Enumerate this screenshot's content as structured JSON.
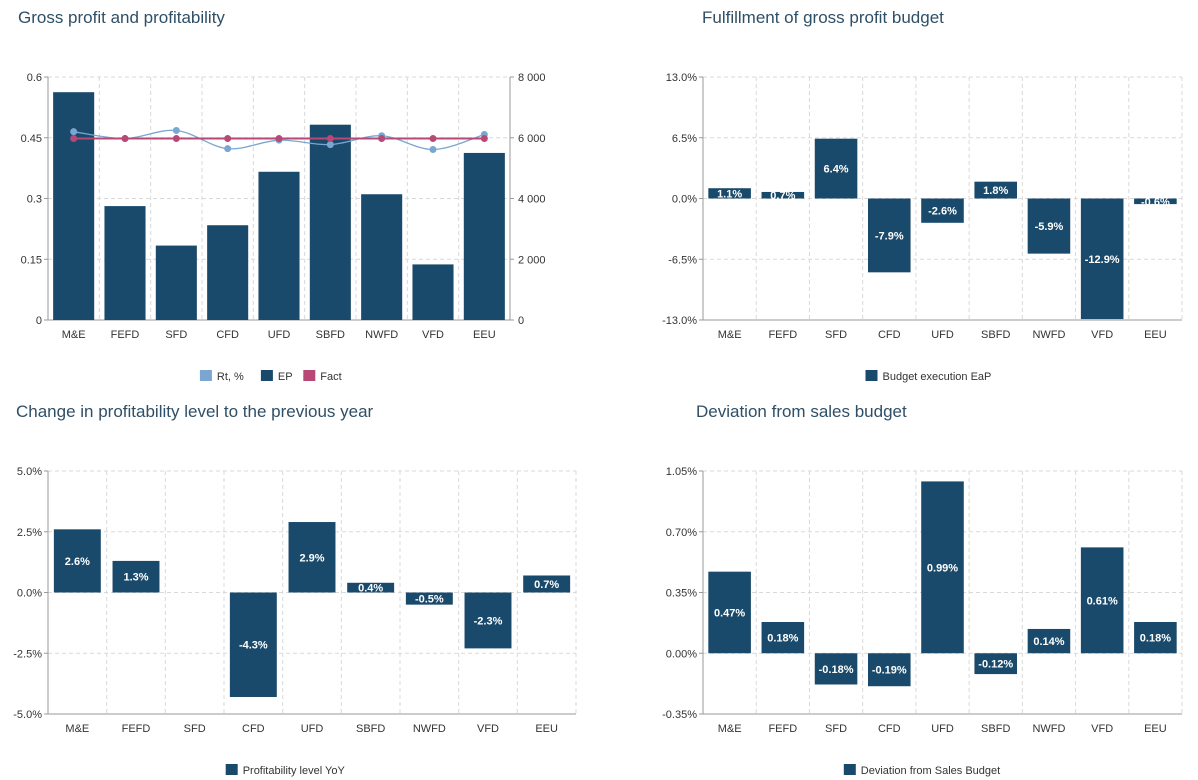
{
  "chart_data": [
    {
      "type": "bar",
      "title": "Gross profit and profitability",
      "categories": [
        "M&E",
        "FEFD",
        "SFD",
        "CFD",
        "UFD",
        "SBFD",
        "NWFD",
        "VFD",
        "EEU"
      ],
      "y_left_ticks": [
        "0",
        "0.15",
        "0.3",
        "0.45",
        "0.6"
      ],
      "y_left_range": [
        0,
        0.6
      ],
      "y_right_ticks": [
        "0",
        "2 000",
        "4 000",
        "6 000",
        "8 000"
      ],
      "y_right_range": [
        0,
        8000
      ],
      "series": [
        {
          "name": "EP",
          "kind": "bar",
          "axis": "right",
          "color": "#1a4a6b",
          "values": [
            7500,
            3750,
            2450,
            3120,
            4880,
            6430,
            4140,
            1830,
            5500
          ]
        },
        {
          "name": "Rt, %",
          "kind": "line",
          "axis": "left",
          "color": "#7aa6cf",
          "values": [
            0.465,
            0.448,
            0.468,
            0.423,
            0.444,
            0.433,
            0.455,
            0.421,
            0.458
          ]
        },
        {
          "name": "Fact",
          "kind": "line",
          "axis": "left",
          "color": "#b84876",
          "values": [
            0.448,
            0.448,
            0.448,
            0.448,
            0.448,
            0.448,
            0.448,
            0.448,
            0.448
          ]
        }
      ],
      "legend": [
        "Rt, %",
        "EP",
        "Fact"
      ],
      "grid": true,
      "legend_position": "bottom"
    },
    {
      "type": "bar",
      "title": "Fulfillment of gross profit budget",
      "categories": [
        "M&E",
        "FEFD",
        "SFD",
        "CFD",
        "UFD",
        "SBFD",
        "NWFD",
        "VFD",
        "EEU"
      ],
      "y_ticks": [
        "-13.0%",
        "-6.5%",
        "0.0%",
        "6.5%",
        "13.0%"
      ],
      "y_range": [
        -13,
        13
      ],
      "series": [
        {
          "name": "Budget execution EaP",
          "color": "#1a4a6b",
          "values": [
            1.1,
            0.7,
            6.4,
            -7.9,
            -2.6,
            1.8,
            -5.9,
            -12.9,
            -0.6
          ],
          "labels": [
            "1.1%",
            "0.7%",
            "6.4%",
            "-7.9%",
            "-2.6%",
            "1.8%",
            "-5.9%",
            "-12.9%",
            "-0.6%"
          ]
        }
      ],
      "grid": true,
      "legend_position": "bottom"
    },
    {
      "type": "bar",
      "title": "Change in profitability level to the previous year",
      "categories": [
        "M&E",
        "FEFD",
        "SFD",
        "CFD",
        "UFD",
        "SBFD",
        "NWFD",
        "VFD",
        "EEU"
      ],
      "y_ticks": [
        "-5.0%",
        "-2.5%",
        "0.0%",
        "2.5%",
        "5.0%"
      ],
      "y_range": [
        -5,
        5
      ],
      "series": [
        {
          "name": "Profitability level YoY",
          "color": "#1a4a6b",
          "values": [
            2.6,
            1.3,
            0,
            -4.3,
            2.9,
            0.4,
            -0.5,
            -2.3,
            0.7
          ],
          "labels": [
            "2.6%",
            "1.3%",
            "",
            "-4.3%",
            "2.9%",
            "0.4%",
            "-0.5%",
            "-2.3%",
            "0.7%"
          ]
        }
      ],
      "grid": true,
      "legend_position": "bottom"
    },
    {
      "type": "bar",
      "title": "Deviation from sales budget",
      "categories": [
        "M&E",
        "FEFD",
        "SFD",
        "CFD",
        "UFD",
        "SBFD",
        "NWFD",
        "VFD",
        "EEU"
      ],
      "y_ticks": [
        "-0.35%",
        "0.00%",
        "0.35%",
        "0.70%",
        "1.05%"
      ],
      "y_range": [
        -0.35,
        1.05
      ],
      "series": [
        {
          "name": "Deviation from Sales Budget",
          "color": "#1a4a6b",
          "values": [
            0.47,
            0.18,
            -0.18,
            -0.19,
            0.99,
            -0.12,
            0.14,
            0.61,
            0.18
          ],
          "labels": [
            "0.47%",
            "0.18%",
            "-0.18%",
            "-0.19%",
            "0.99%",
            "-0.12%",
            "0.14%",
            "0.61%",
            "0.18%"
          ]
        }
      ],
      "grid": true,
      "legend_position": "bottom"
    }
  ]
}
